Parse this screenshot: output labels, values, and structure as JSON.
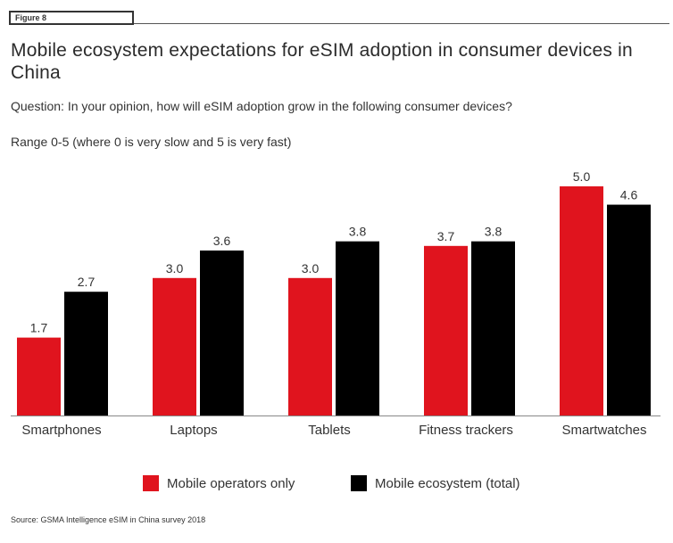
{
  "figure_label": "Figure 8",
  "title": "Mobile ecosystem expectations for eSIM adoption in consumer devices in China",
  "question": "Question: In your opinion, how will eSIM adoption grow in the following consumer devices?",
  "range_note": "Range 0-5 (where 0 is very slow and 5 is very fast)",
  "source": "Source: GSMA Intelligence eSIM in China survey 2018",
  "colors": {
    "operators": "#e0141e",
    "ecosystem": "#000000",
    "text": "#333333"
  },
  "chart_data": {
    "type": "bar",
    "categories": [
      "Smartphones",
      "Laptops",
      "Tablets",
      "Fitness trackers",
      "Smartwatches"
    ],
    "series": [
      {
        "name": "Mobile operators only",
        "values": [
          1.7,
          3.0,
          3.0,
          3.7,
          5.0
        ],
        "color": "#e0141e"
      },
      {
        "name": "Mobile ecosystem (total)",
        "values": [
          2.7,
          3.6,
          3.8,
          3.8,
          4.6
        ],
        "color": "#000000"
      }
    ],
    "value_labels": [
      [
        "1.7",
        "3.0",
        "3.0",
        "3.7",
        "5.0"
      ],
      [
        "2.7",
        "3.6",
        "3.8",
        "3.8",
        "4.6"
      ]
    ],
    "ylim": [
      0,
      5
    ],
    "legend_position": "bottom",
    "grid": false
  }
}
